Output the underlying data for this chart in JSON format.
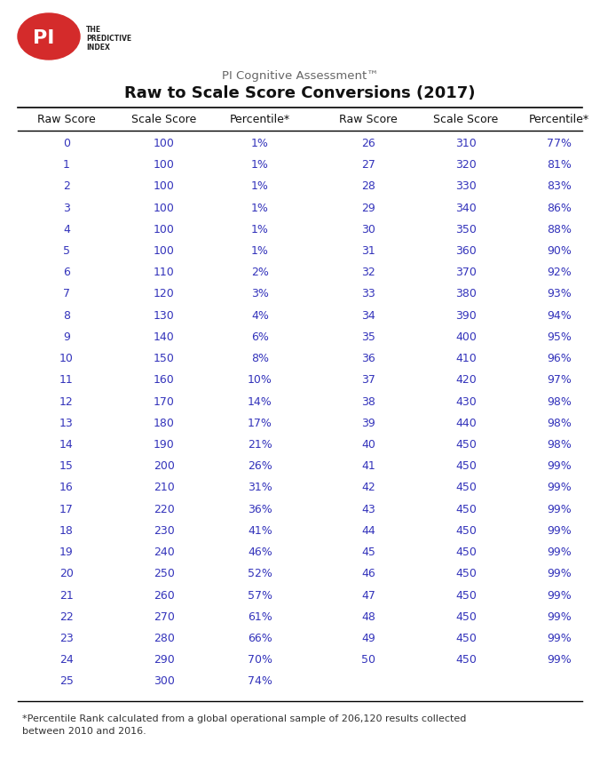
{
  "title_line1": "PI Cognitive Assessment™",
  "title_line2": "Raw to Scale Score Conversions (2017)",
  "col_headers": [
    "Raw Score",
    "Scale Score",
    "Percentile*",
    "Raw Score",
    "Scale Score",
    "Percentile*"
  ],
  "left_data": [
    [
      0,
      100,
      "1%"
    ],
    [
      1,
      100,
      "1%"
    ],
    [
      2,
      100,
      "1%"
    ],
    [
      3,
      100,
      "1%"
    ],
    [
      4,
      100,
      "1%"
    ],
    [
      5,
      100,
      "1%"
    ],
    [
      6,
      110,
      "2%"
    ],
    [
      7,
      120,
      "3%"
    ],
    [
      8,
      130,
      "4%"
    ],
    [
      9,
      140,
      "6%"
    ],
    [
      10,
      150,
      "8%"
    ],
    [
      11,
      160,
      "10%"
    ],
    [
      12,
      170,
      "14%"
    ],
    [
      13,
      180,
      "17%"
    ],
    [
      14,
      190,
      "21%"
    ],
    [
      15,
      200,
      "26%"
    ],
    [
      16,
      210,
      "31%"
    ],
    [
      17,
      220,
      "36%"
    ],
    [
      18,
      230,
      "41%"
    ],
    [
      19,
      240,
      "46%"
    ],
    [
      20,
      250,
      "52%"
    ],
    [
      21,
      260,
      "57%"
    ],
    [
      22,
      270,
      "61%"
    ],
    [
      23,
      280,
      "66%"
    ],
    [
      24,
      290,
      "70%"
    ],
    [
      25,
      300,
      "74%"
    ]
  ],
  "right_data": [
    [
      26,
      310,
      "77%"
    ],
    [
      27,
      320,
      "81%"
    ],
    [
      28,
      330,
      "83%"
    ],
    [
      29,
      340,
      "86%"
    ],
    [
      30,
      350,
      "88%"
    ],
    [
      31,
      360,
      "90%"
    ],
    [
      32,
      370,
      "92%"
    ],
    [
      33,
      380,
      "93%"
    ],
    [
      34,
      390,
      "94%"
    ],
    [
      35,
      400,
      "95%"
    ],
    [
      36,
      410,
      "96%"
    ],
    [
      37,
      420,
      "97%"
    ],
    [
      38,
      430,
      "98%"
    ],
    [
      39,
      440,
      "98%"
    ],
    [
      40,
      450,
      "98%"
    ],
    [
      41,
      450,
      "99%"
    ],
    [
      42,
      450,
      "99%"
    ],
    [
      43,
      450,
      "99%"
    ],
    [
      44,
      450,
      "99%"
    ],
    [
      45,
      450,
      "99%"
    ],
    [
      46,
      450,
      "99%"
    ],
    [
      47,
      450,
      "99%"
    ],
    [
      48,
      450,
      "99%"
    ],
    [
      49,
      450,
      "99%"
    ],
    [
      50,
      450,
      "99%"
    ],
    [
      null,
      null,
      null
    ]
  ],
  "footnote_line1": "*Percentile Rank calculated from a global operational sample of 206,120 results collected",
  "footnote_line2": "between 2010 and 2016.",
  "data_color": "#3333bb",
  "header_color": "#111111",
  "title_color1": "#666666",
  "title_color2": "#111111",
  "bg_color": "#ffffff",
  "logo_red": "#d42b2b",
  "header_fontsize": 9.0,
  "data_fontsize": 9.0,
  "footnote_fontsize": 8.0,
  "title_fontsize1": 9.5,
  "title_fontsize2": 13.0
}
